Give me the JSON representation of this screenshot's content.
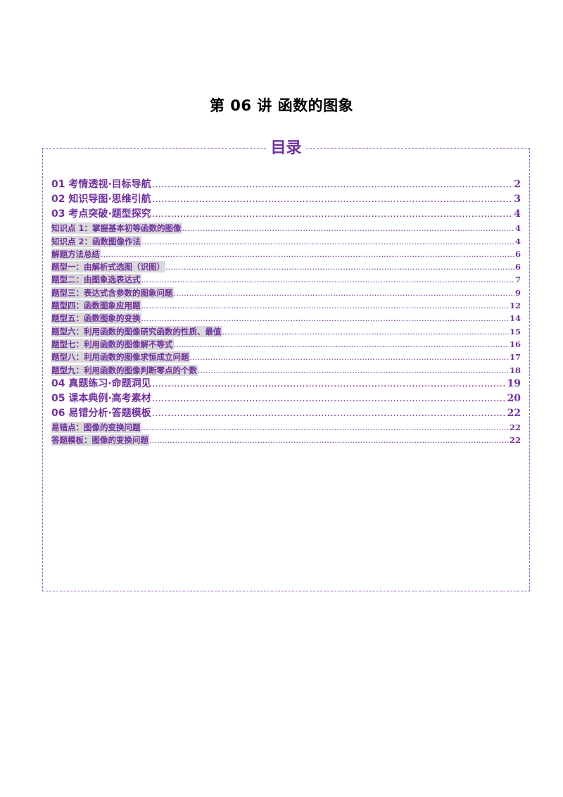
{
  "document": {
    "title": "第 06 讲  函数的图象"
  },
  "toc": {
    "heading": "目录",
    "items": [
      {
        "label": "01 考情透视·目标导航",
        "page": "2",
        "level": 1
      },
      {
        "label": "02 知识导图·思维引航",
        "page": "3",
        "level": 1
      },
      {
        "label": "03 考点突破·题型探究",
        "page": "4",
        "level": 1
      },
      {
        "label": "知识点 1：掌握基本初等函数的图像",
        "page": "4",
        "level": 2
      },
      {
        "label": "知识点 2：函数图像作法",
        "page": "4",
        "level": 2
      },
      {
        "label": "解题方法总结",
        "page": "6",
        "level": 2
      },
      {
        "label": "题型一：由解析式选图（识图）",
        "page": "6",
        "level": 2
      },
      {
        "label": "题型二：由图象选表达式",
        "page": "7",
        "level": 2
      },
      {
        "label": "题型三：表达式含参数的图象问题",
        "page": "9",
        "level": 2
      },
      {
        "label": "题型四：函数图象应用题",
        "page": "12",
        "level": 2
      },
      {
        "label": "题型五：函数图象的变换",
        "page": "14",
        "level": 2
      },
      {
        "label": "题型六：利用函数的图像研究函数的性质、最值",
        "page": "15",
        "level": 2
      },
      {
        "label": "题型七：利用函数的图像解不等式",
        "page": "16",
        "level": 2
      },
      {
        "label": "题型八：利用函数的图像求恒成立问题",
        "page": "17",
        "level": 2
      },
      {
        "label": "题型九：利用函数的图像判断零点的个数",
        "page": "18",
        "level": 2
      },
      {
        "label": "04 真题练习·命题洞见",
        "page": "19",
        "level": 1
      },
      {
        "label": "05 课本典例·高考素材",
        "page": "20",
        "level": 1
      },
      {
        "label": "06 易错分析·答题模板",
        "page": "22",
        "level": 1
      },
      {
        "label": "易错点：图像的变换问题",
        "page": "22",
        "level": 2
      },
      {
        "label": "答题模板：图像的变换问题",
        "page": "22",
        "level": 2
      }
    ]
  }
}
